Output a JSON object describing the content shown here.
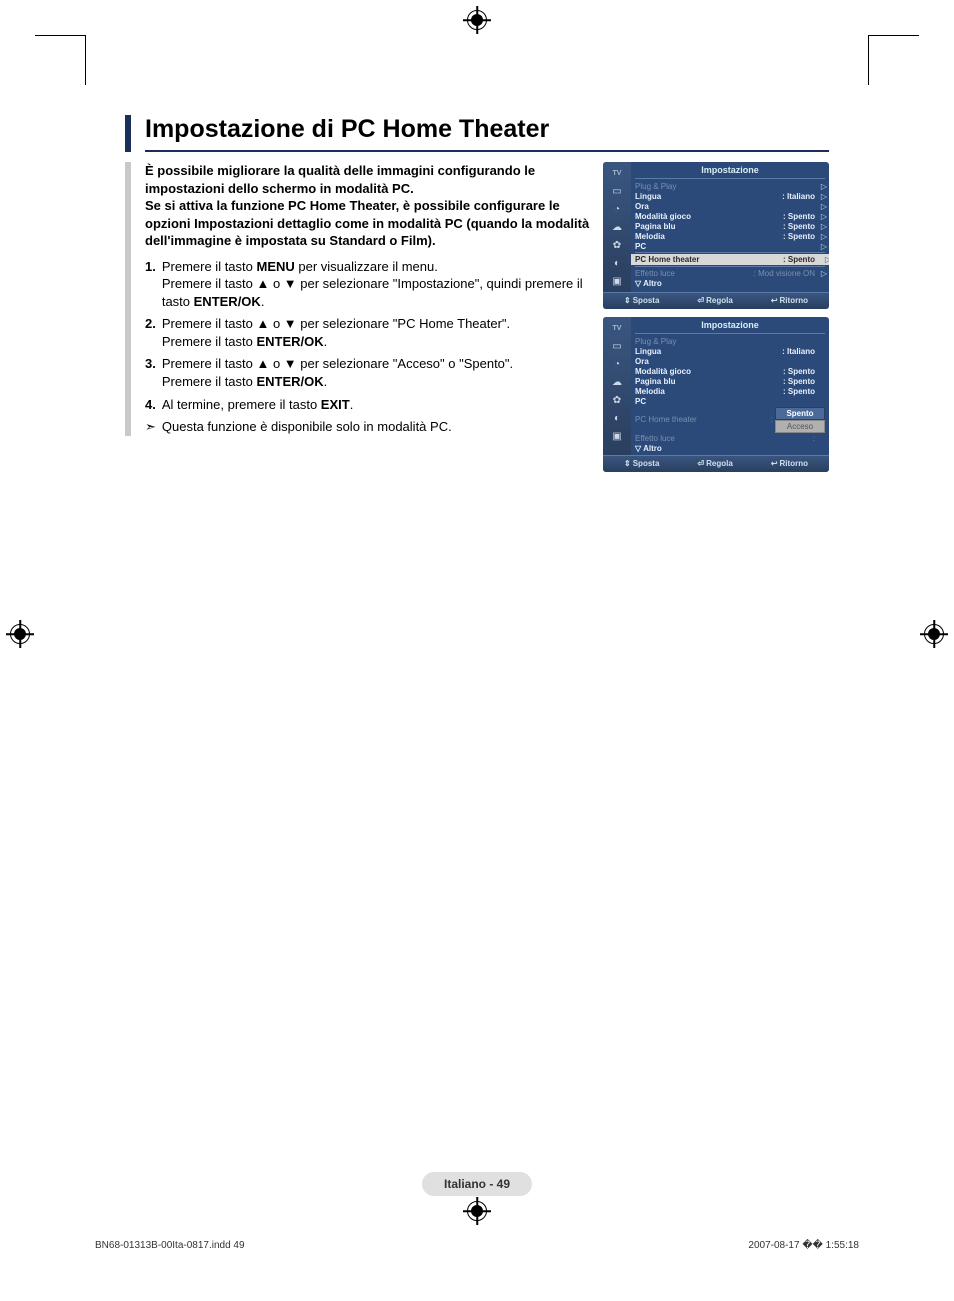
{
  "title": "Impostazione di PC Home Theater",
  "intro": "È possibile migliorare la qualità delle immagini configurando le impostazioni dello schermo in modalità PC.\nSe si attiva la funzione PC Home Theater, è possibile configurare le opzioni Impostazioni dettaglio come in modalità PC (quando la modalità dell'immagine è impostata su Standard o Film).",
  "steps": [
    {
      "num": "1.",
      "text_parts": [
        "Premere il tasto ",
        "MENU",
        " per visualizzare il menu.\nPremere il tasto ▲ o ▼ per selezionare \"Impostazione\", quindi premere il tasto ",
        "ENTER/OK",
        "."
      ]
    },
    {
      "num": "2.",
      "text_parts": [
        "Premere il tasto ▲ o ▼ per selezionare \"PC Home Theater\".\nPremere il tasto ",
        "ENTER/OK",
        "."
      ]
    },
    {
      "num": "3.",
      "text_parts": [
        "Premere il tasto ▲ o ▼ per selezionare \"Acceso\" o \"Spento\".\nPremere il tasto ",
        "ENTER/OK",
        "."
      ]
    },
    {
      "num": "4.",
      "text_parts": [
        "Al termine, premere il tasto ",
        "EXIT",
        "."
      ]
    }
  ],
  "note": "Questa funzione è disponibile solo in modalità PC.",
  "menu1": {
    "title": "Impostazione",
    "tv_label": "TV",
    "rows": [
      {
        "label": "Plug & Play",
        "value": "",
        "dim": true,
        "arrow": true
      },
      {
        "label": "Lingua",
        "value": ": Italiano",
        "arrow": true
      },
      {
        "label": "Ora",
        "value": "",
        "arrow": true
      },
      {
        "label": "Modalità gioco",
        "value": ": Spento",
        "arrow": true
      },
      {
        "label": "Pagina blu",
        "value": ": Spento",
        "arrow": true
      },
      {
        "label": "Melodia",
        "value": ": Spento",
        "arrow": true
      },
      {
        "label": "PC",
        "value": "",
        "arrow": true
      },
      {
        "divider": true
      },
      {
        "label": "PC Home theater",
        "value": ": Spento",
        "selected": true,
        "arrow": true
      },
      {
        "divider": true
      },
      {
        "label": "Effetto luce",
        "value": ": Mod visione ON",
        "dim": true,
        "arrow": true
      },
      {
        "label": "▽ Altro",
        "value": "",
        "altro": true
      }
    ],
    "footer": [
      {
        "glyph": "⇕",
        "label": "Sposta"
      },
      {
        "glyph": "⏎",
        "label": "Regola"
      },
      {
        "glyph": "↩",
        "label": "Ritorno"
      }
    ]
  },
  "menu2": {
    "title": "Impostazione",
    "tv_label": "TV",
    "rows": [
      {
        "label": "Plug & Play",
        "value": "",
        "dim": true
      },
      {
        "label": "Lingua",
        "value": ": Italiano"
      },
      {
        "label": "Ora",
        "value": ""
      },
      {
        "label": "Modalità gioco",
        "value": ": Spento"
      },
      {
        "label": "Pagina blu",
        "value": ": Spento"
      },
      {
        "label": "Melodia",
        "value": ": Spento"
      },
      {
        "label": "PC",
        "value": ""
      },
      {
        "label": "PC Home theater",
        "value": ":",
        "dim": true,
        "dropdown": true
      },
      {
        "label": "Effetto luce",
        "value": ":",
        "dim": true
      },
      {
        "label": "▽ Altro",
        "value": "",
        "altro": true
      }
    ],
    "dropdown_options": [
      "Spento",
      "Acceso"
    ],
    "footer": [
      {
        "glyph": "⇕",
        "label": "Sposta"
      },
      {
        "glyph": "⏎",
        "label": "Regola"
      },
      {
        "glyph": "↩",
        "label": "Ritorno"
      }
    ]
  },
  "page_tag": "Italiano - 49",
  "footer_left": "BN68-01313B-00Ita-0817.indd   49",
  "footer_right": "2007-08-17   �� 1:55:18",
  "colors": {
    "accent_dark": "#1a2e5a",
    "accent_light": "#c9c9c9",
    "menu_bg": "#2b4a7a",
    "menu_sel": "#d8d8d8"
  }
}
